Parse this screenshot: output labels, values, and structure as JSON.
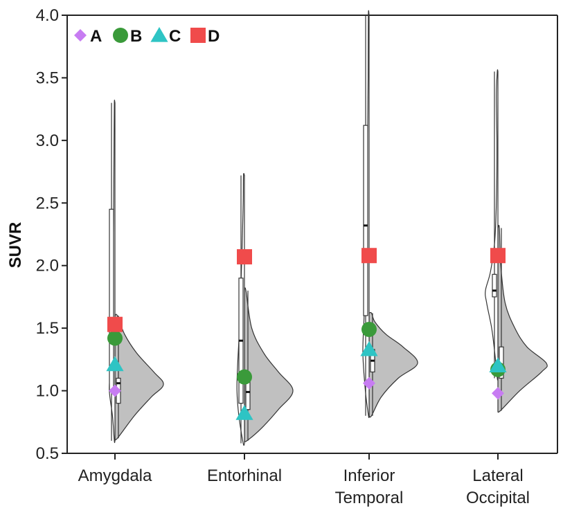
{
  "chart_data": {
    "type": "violin",
    "ylabel": "SUVR",
    "ylim": [
      0.5,
      4.0
    ],
    "yticks": [
      "0.5",
      "1.0",
      "1.5",
      "2.0",
      "2.5",
      "3.0",
      "3.5",
      "4.0"
    ],
    "categories": [
      {
        "key": "amygdala",
        "lines": [
          "Amygdala"
        ]
      },
      {
        "key": "entorhinal",
        "lines": [
          "Entorhinal"
        ]
      },
      {
        "key": "inferior-temporal",
        "lines": [
          "Inferior",
          "Temporal"
        ]
      },
      {
        "key": "lateral-occipital",
        "lines": [
          "Lateral",
          "Occipital"
        ]
      }
    ],
    "legend": {
      "position": "top-left",
      "entries": [
        {
          "name": "A",
          "marker": "diamond",
          "color": "#c77cf2"
        },
        {
          "name": "B",
          "marker": "circle",
          "color": "#3a9a3a"
        },
        {
          "name": "C",
          "marker": "triangle",
          "color": "#2ec4c4"
        },
        {
          "name": "D",
          "marker": "square",
          "color": "#f04b4b"
        }
      ]
    },
    "series": [
      {
        "name": "A",
        "values": [
          1.0,
          1.12,
          1.06,
          0.98
        ]
      },
      {
        "name": "B",
        "values": [
          1.42,
          1.11,
          1.49,
          1.17
        ]
      },
      {
        "name": "C",
        "values": [
          1.21,
          0.82,
          1.33,
          1.2
        ]
      },
      {
        "name": "D",
        "values": [
          1.53,
          2.07,
          2.08,
          2.08
        ]
      }
    ],
    "distributions": {
      "left_fill": "#ffffff",
      "right_fill": "#c0c0c0",
      "groups": [
        {
          "left": {
            "min": 0.6,
            "max": 3.3,
            "peak": 1.05,
            "peak_width": 0.08,
            "shape": [
              [
                0.6,
                0.05
              ],
              [
                0.8,
                0.2
              ],
              [
                1.0,
                0.45
              ],
              [
                1.2,
                0.35
              ],
              [
                1.5,
                0.3
              ],
              [
                2.0,
                0.15
              ],
              [
                2.5,
                0.1
              ],
              [
                3.0,
                0.07
              ],
              [
                3.3,
                0.05
              ]
            ]
          },
          "right": {
            "min": 0.62,
            "max": 1.6,
            "shape": [
              [
                0.62,
                0.05
              ],
              [
                0.8,
                0.4
              ],
              [
                0.95,
                0.75
              ],
              [
                1.05,
                1.0
              ],
              [
                1.15,
                0.8
              ],
              [
                1.3,
                0.45
              ],
              [
                1.45,
                0.2
              ],
              [
                1.6,
                0.05
              ]
            ]
          },
          "box_left": {
            "q1": 1.0,
            "median": 1.4,
            "q3": 2.45,
            "wmin": 0.6,
            "wmax": 3.3
          },
          "box_right": {
            "q1": 0.9,
            "median": 1.06,
            "q3": 1.1,
            "wmin": 0.62,
            "wmax": 1.6
          }
        },
        {
          "left": {
            "min": 0.58,
            "max": 2.72,
            "shape": [
              [
                0.58,
                0.1
              ],
              [
                0.8,
                0.45
              ],
              [
                1.0,
                0.6
              ],
              [
                1.2,
                0.55
              ],
              [
                1.5,
                0.4
              ],
              [
                1.8,
                0.3
              ],
              [
                2.1,
                0.2
              ],
              [
                2.5,
                0.1
              ],
              [
                2.72,
                0.08
              ]
            ]
          },
          "right": {
            "min": 0.6,
            "max": 1.8,
            "shape": [
              [
                0.6,
                0.05
              ],
              [
                0.7,
                0.35
              ],
              [
                0.85,
                0.7
              ],
              [
                1.0,
                1.0
              ],
              [
                1.15,
                0.7
              ],
              [
                1.3,
                0.4
              ],
              [
                1.5,
                0.15
              ],
              [
                1.8,
                0.03
              ]
            ]
          },
          "box_left": {
            "q1": 0.9,
            "median": 1.4,
            "q3": 1.9,
            "wmin": 0.58,
            "wmax": 2.72
          },
          "box_right": {
            "q1": 0.85,
            "median": 0.99,
            "q3": 1.1,
            "wmin": 0.6,
            "wmax": 1.8
          }
        },
        {
          "left": {
            "min": 0.8,
            "max": 4.0,
            "shape": [
              [
                0.8,
                0.05
              ],
              [
                1.0,
                0.3
              ],
              [
                1.3,
                0.5
              ],
              [
                1.6,
                0.4
              ],
              [
                2.0,
                0.3
              ],
              [
                2.5,
                0.2
              ],
              [
                3.0,
                0.12
              ],
              [
                3.5,
                0.08
              ],
              [
                4.0,
                0.06
              ]
            ]
          },
          "right": {
            "min": 0.8,
            "max": 1.62,
            "shape": [
              [
                0.8,
                0.05
              ],
              [
                0.95,
                0.25
              ],
              [
                1.1,
                0.6
              ],
              [
                1.22,
                1.0
              ],
              [
                1.35,
                0.7
              ],
              [
                1.45,
                0.35
              ],
              [
                1.55,
                0.12
              ],
              [
                1.62,
                0.05
              ]
            ]
          },
          "box_left": {
            "q1": 1.6,
            "median": 2.32,
            "q3": 3.12,
            "wmin": 0.8,
            "wmax": 4.0
          },
          "box_right": {
            "q1": 1.15,
            "median": 1.24,
            "q3": 1.33,
            "wmin": 0.8,
            "wmax": 1.62
          }
        },
        {
          "left": {
            "min": 1.1,
            "max": 3.55,
            "shape": [
              [
                1.1,
                0.05
              ],
              [
                1.3,
                0.25
              ],
              [
                1.5,
                0.5
              ],
              [
                1.7,
                0.9
              ],
              [
                1.8,
                1.0
              ],
              [
                1.95,
                0.6
              ],
              [
                2.2,
                0.25
              ],
              [
                2.6,
                0.1
              ],
              [
                3.0,
                0.08
              ],
              [
                3.35,
                0.12
              ],
              [
                3.55,
                0.05
              ]
            ]
          },
          "right": {
            "min": 0.84,
            "max": 2.3,
            "shape": [
              [
                0.84,
                0.05
              ],
              [
                1.0,
                0.45
              ],
              [
                1.15,
                0.9
              ],
              [
                1.22,
                1.0
              ],
              [
                1.35,
                0.6
              ],
              [
                1.5,
                0.35
              ],
              [
                1.7,
                0.15
              ],
              [
                2.0,
                0.06
              ],
              [
                2.3,
                0.03
              ]
            ]
          },
          "box_left": {
            "q1": 1.75,
            "median": 1.8,
            "q3": 1.93,
            "wmin": 1.1,
            "wmax": 3.55
          },
          "box_right": {
            "q1": 1.1,
            "median": 1.2,
            "q3": 1.35,
            "wmin": 0.84,
            "wmax": 2.3
          }
        }
      ]
    }
  }
}
